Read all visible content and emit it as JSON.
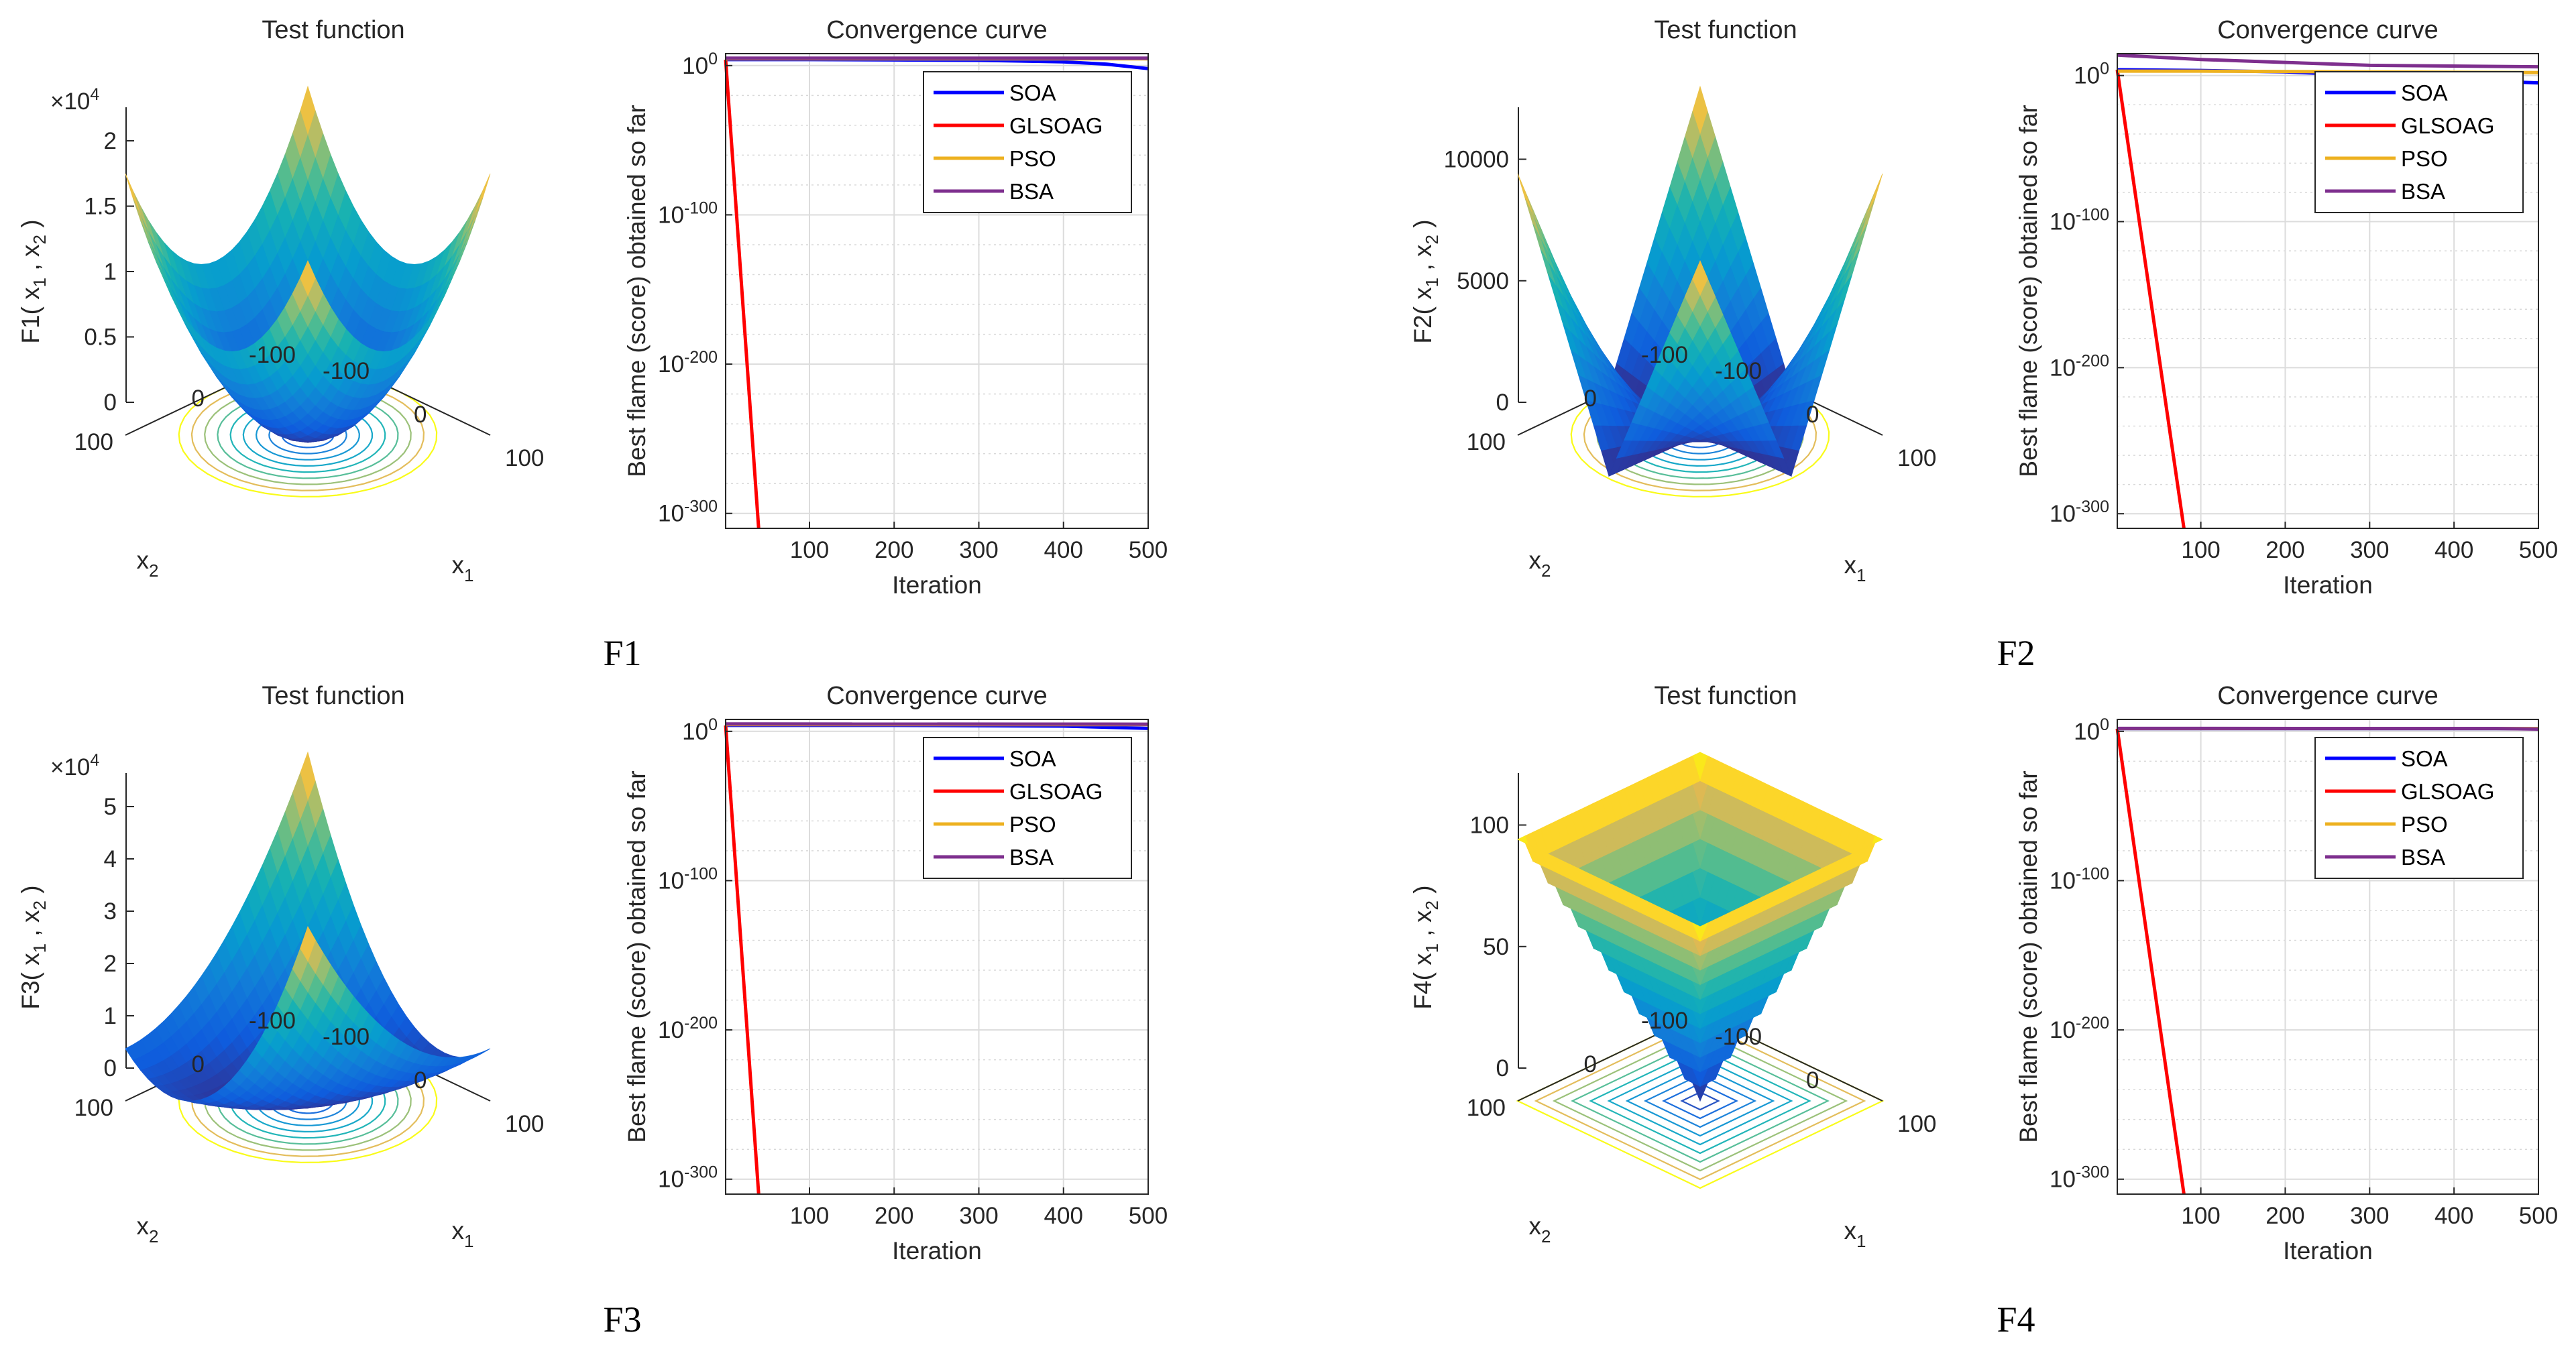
{
  "figure": {
    "panels": [
      {
        "id": "F1",
        "caption": "F1"
      },
      {
        "id": "F2",
        "caption": "F2"
      },
      {
        "id": "F3",
        "caption": "F3"
      },
      {
        "id": "F4",
        "caption": "F4"
      }
    ]
  },
  "colors": {
    "SOA": "#0000ff",
    "GLSOAG": "#ff0000",
    "PSO": "#edb120",
    "BSA": "#7e2f8e"
  },
  "chart_data": [
    {
      "type": "surface",
      "panel": "F1",
      "title": "Test function",
      "zlabel": "F1( x",
      "xlabel": "x",
      "ylabel": "x",
      "zlim": [
        0,
        20000
      ],
      "zticks": [
        "0",
        "0.5",
        "1",
        "1.5",
        "2"
      ],
      "zmult": "×10",
      "zmult_exp": "4",
      "xticks": [
        "-100",
        "0",
        "100"
      ],
      "yticks": [
        "-100",
        "0",
        "100"
      ],
      "function": "sum of squares"
    },
    {
      "type": "line",
      "panel": "F1",
      "title": "Convergence curve",
      "xlabel": "Iteration",
      "ylabel": "Best flame (score) obtained so far",
      "xlim": [
        1,
        500
      ],
      "xticks": [
        "100",
        "200",
        "300",
        "400",
        "500"
      ],
      "yscale": "log",
      "yticks": [
        "10",
        "10",
        "10",
        "10"
      ],
      "yticks_exp": [
        "0",
        "-100",
        "-200",
        "-300"
      ],
      "ylim_exp": [
        -310,
        8
      ],
      "series": [
        {
          "name": "SOA",
          "x": [
            1,
            100,
            200,
            300,
            400,
            450,
            500
          ],
          "log10_y": [
            4,
            4,
            3.8,
            3.5,
            2.5,
            1,
            -2
          ]
        },
        {
          "name": "GLSOAG",
          "x": [
            1,
            40
          ],
          "log10_y": [
            4,
            -310
          ]
        },
        {
          "name": "PSO",
          "x": [
            1,
            500
          ],
          "log10_y": [
            4.5,
            4.5
          ]
        },
        {
          "name": "BSA",
          "x": [
            1,
            500
          ],
          "log10_y": [
            5,
            5
          ]
        }
      ]
    },
    {
      "type": "surface",
      "panel": "F2",
      "title": "Test function",
      "zlabel": "F2( x",
      "xlabel": "x",
      "ylabel": "x",
      "zlim": [
        0,
        12000
      ],
      "zticks": [
        "0",
        "5000",
        "10000"
      ],
      "xticks": [
        "-100",
        "0",
        "100"
      ],
      "yticks": [
        "-100",
        "0",
        "100"
      ],
      "function": "sum of absolute values plus product"
    },
    {
      "type": "line",
      "panel": "F2",
      "title": "Convergence curve",
      "xlabel": "Iteration",
      "ylabel": "Best flame (score) obtained so far",
      "xlim": [
        1,
        500
      ],
      "xticks": [
        "100",
        "200",
        "300",
        "400",
        "500"
      ],
      "yscale": "log",
      "yticks": [
        "10",
        "10",
        "10",
        "10"
      ],
      "yticks_exp": [
        "0",
        "-100",
        "-200",
        "-300"
      ],
      "ylim_exp": [
        -310,
        15
      ],
      "series": [
        {
          "name": "SOA",
          "x": [
            1,
            100,
            200,
            300,
            400,
            450,
            500
          ],
          "log10_y": [
            4,
            3.5,
            2.5,
            0,
            -2,
            -4,
            -5
          ]
        },
        {
          "name": "GLSOAG",
          "x": [
            1,
            80
          ],
          "log10_y": [
            4,
            -310
          ]
        },
        {
          "name": "PSO",
          "x": [
            1,
            100,
            300,
            500
          ],
          "log10_y": [
            3,
            3,
            2.5,
            2
          ]
        },
        {
          "name": "BSA",
          "x": [
            1,
            100,
            200,
            300,
            500
          ],
          "log10_y": [
            14,
            11,
            9,
            7,
            6
          ]
        }
      ]
    },
    {
      "type": "surface",
      "panel": "F3",
      "title": "Test function",
      "zlabel": "F3( x",
      "xlabel": "x",
      "ylabel": "x",
      "zlim": [
        0,
        50000
      ],
      "zticks": [
        "0",
        "1",
        "2",
        "3",
        "4",
        "5"
      ],
      "zmult": "×10",
      "zmult_exp": "4",
      "xticks": [
        "-100",
        "0",
        "100"
      ],
      "yticks": [
        "-100",
        "0",
        "100"
      ],
      "function": "sum of squared partial sums"
    },
    {
      "type": "line",
      "panel": "F3",
      "title": "Convergence curve",
      "xlabel": "Iteration",
      "ylabel": "Best flame (score) obtained so far",
      "xlim": [
        1,
        500
      ],
      "xticks": [
        "100",
        "200",
        "300",
        "400",
        "500"
      ],
      "yscale": "log",
      "yticks": [
        "10",
        "10",
        "10",
        "10"
      ],
      "yticks_exp": [
        "0",
        "-100",
        "-200",
        "-300"
      ],
      "ylim_exp": [
        -310,
        8
      ],
      "series": [
        {
          "name": "SOA",
          "x": [
            1,
            200,
            400,
            500
          ],
          "log10_y": [
            4,
            4,
            3.5,
            2
          ]
        },
        {
          "name": "GLSOAG",
          "x": [
            1,
            40
          ],
          "log10_y": [
            4,
            -310
          ]
        },
        {
          "name": "PSO",
          "x": [
            1,
            500
          ],
          "log10_y": [
            4.5,
            4.5
          ]
        },
        {
          "name": "BSA",
          "x": [
            1,
            500
          ],
          "log10_y": [
            5,
            4.8
          ]
        }
      ]
    },
    {
      "type": "surface",
      "panel": "F4",
      "title": "Test function",
      "zlabel": "F4( x",
      "xlabel": "x",
      "ylabel": "x",
      "zlim": [
        0,
        120
      ],
      "zticks": [
        "0",
        "50",
        "100"
      ],
      "xticks": [
        "-100",
        "0",
        "100"
      ],
      "yticks": [
        "-100",
        "0",
        "100"
      ],
      "function": "max absolute value"
    },
    {
      "type": "line",
      "panel": "F4",
      "title": "Convergence curve",
      "xlabel": "Iteration",
      "ylabel": "Best flame (score) obtained so far",
      "xlim": [
        1,
        500
      ],
      "xticks": [
        "100",
        "200",
        "300",
        "400",
        "500"
      ],
      "yscale": "log",
      "yticks": [
        "10",
        "10",
        "10",
        "10"
      ],
      "yticks_exp": [
        "0",
        "-100",
        "-200",
        "-300"
      ],
      "ylim_exp": [
        -310,
        8
      ],
      "series": [
        {
          "name": "SOA",
          "x": [
            1,
            500
          ],
          "log10_y": [
            1.8,
            1.8
          ]
        },
        {
          "name": "GLSOAG",
          "x": [
            1,
            80
          ],
          "log10_y": [
            1.8,
            -310
          ]
        },
        {
          "name": "PSO",
          "x": [
            1,
            500
          ],
          "log10_y": [
            1.9,
            1.9
          ]
        },
        {
          "name": "BSA",
          "x": [
            1,
            450,
            500
          ],
          "log10_y": [
            2,
            1.95,
            1.5
          ]
        }
      ]
    }
  ]
}
